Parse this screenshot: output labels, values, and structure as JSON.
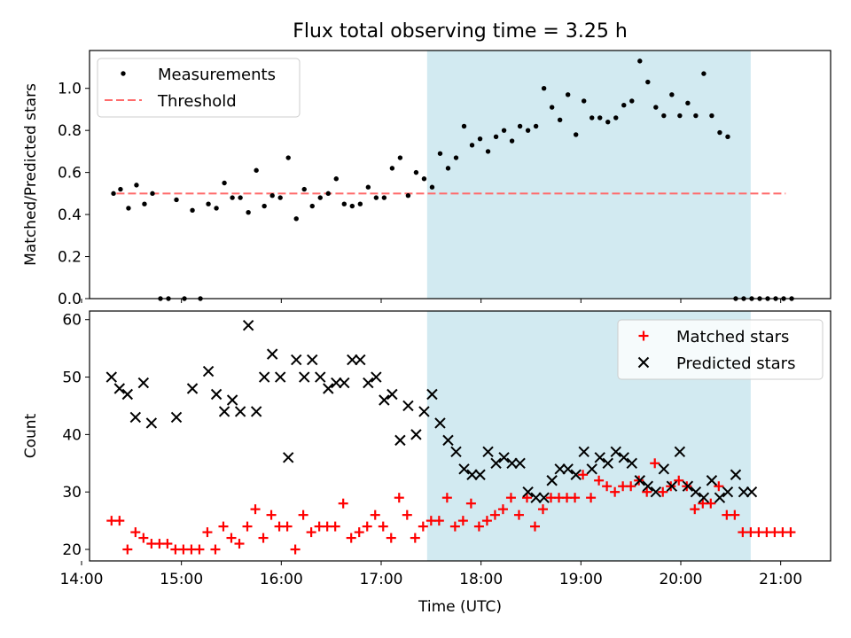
{
  "title": "Flux total observing time = 3.25 h",
  "chart_data": [
    {
      "type": "scatter",
      "ylabel": "Matched/Predicted stars",
      "xlim": [
        14.08,
        21.5
      ],
      "ylim": [
        0,
        1.18
      ],
      "yticks": [
        0.0,
        0.2,
        0.4,
        0.6,
        0.8,
        1.0
      ],
      "ytick_labels": [
        "0.0",
        "0.2",
        "0.4",
        "0.6",
        "0.8",
        "1.0"
      ],
      "shaded_span": {
        "x0": 17.46,
        "x1": 20.7,
        "color": "#add8e6"
      },
      "threshold": {
        "value": 0.5,
        "x0": 14.35,
        "x1": 21.05,
        "color": "#ff6b6b",
        "name": "Threshold"
      },
      "measurements_name": "Measurements",
      "legend_location": "upper left",
      "measurements": {
        "x": [
          14.32,
          14.39,
          14.47,
          14.55,
          14.63,
          14.71,
          14.79,
          14.87,
          14.95,
          15.03,
          15.11,
          15.19,
          15.27,
          15.35,
          15.43,
          15.51,
          15.59,
          15.67,
          15.75,
          15.83,
          15.91,
          15.99,
          16.07,
          16.15,
          16.23,
          16.31,
          16.39,
          16.47,
          16.55,
          16.63,
          16.71,
          16.79,
          16.87,
          16.95,
          17.03,
          17.11,
          17.19,
          17.27,
          17.35,
          17.43,
          17.51,
          17.59,
          17.67,
          17.75,
          17.83,
          17.91,
          17.99,
          18.07,
          18.15,
          18.23,
          18.31,
          18.39,
          18.47,
          18.55,
          18.63,
          18.71,
          18.79,
          18.87,
          18.95,
          19.03,
          19.11,
          19.19,
          19.27,
          19.35,
          19.43,
          19.51,
          19.59,
          19.67,
          19.75,
          19.83,
          19.91,
          19.99,
          20.07,
          20.15,
          20.23,
          20.31,
          20.39,
          20.47,
          20.55,
          20.63,
          20.71,
          20.79,
          20.87,
          20.95,
          21.03,
          21.11
        ],
        "y": [
          0.5,
          0.52,
          0.43,
          0.54,
          0.45,
          0.5,
          0.0,
          0.0,
          0.47,
          0.0,
          0.42,
          0.0,
          0.45,
          0.43,
          0.55,
          0.48,
          0.48,
          0.41,
          0.61,
          0.44,
          0.49,
          0.48,
          0.67,
          0.38,
          0.52,
          0.44,
          0.48,
          0.5,
          0.57,
          0.45,
          0.44,
          0.45,
          0.53,
          0.48,
          0.48,
          0.62,
          0.67,
          0.49,
          0.6,
          0.57,
          0.53,
          0.69,
          0.62,
          0.67,
          0.82,
          0.73,
          0.76,
          0.7,
          0.77,
          0.8,
          0.75,
          0.82,
          0.8,
          0.82,
          1.0,
          0.91,
          0.85,
          0.97,
          0.78,
          0.94,
          0.86,
          0.86,
          0.84,
          0.86,
          0.92,
          0.94,
          1.13,
          1.03,
          0.91,
          0.87,
          0.97,
          0.87,
          0.93,
          0.87,
          1.07,
          0.87,
          0.79,
          0.77,
          0.0,
          0.0,
          0.0,
          0.0,
          0.0,
          0.0,
          0.0,
          0.0
        ]
      }
    },
    {
      "type": "scatter",
      "xlabel": "Time (UTC)",
      "ylabel": "Count",
      "xlim": [
        14.08,
        21.5
      ],
      "ylim": [
        18,
        61.5
      ],
      "xticks": [
        14,
        15,
        16,
        17,
        18,
        19,
        20,
        21
      ],
      "xtick_labels": [
        "14:00",
        "15:00",
        "16:00",
        "17:00",
        "18:00",
        "19:00",
        "20:00",
        "21:00"
      ],
      "yticks": [
        20,
        30,
        40,
        50,
        60
      ],
      "ytick_labels": [
        "20",
        "30",
        "40",
        "50",
        "60"
      ],
      "shaded_span": {
        "x0": 17.46,
        "x1": 20.7,
        "color": "#add8e6"
      },
      "legend_location": "upper right",
      "series": [
        {
          "name": "Matched stars",
          "marker": "+",
          "color": "#ff0000",
          "x": [
            14.3,
            14.38,
            14.46,
            14.54,
            14.62,
            14.7,
            14.78,
            14.86,
            14.94,
            15.02,
            15.1,
            15.18,
            15.26,
            15.34,
            15.42,
            15.5,
            15.58,
            15.66,
            15.74,
            15.82,
            15.9,
            15.98,
            16.06,
            16.14,
            16.22,
            16.3,
            16.38,
            16.46,
            16.54,
            16.62,
            16.7,
            16.78,
            16.86,
            16.94,
            17.02,
            17.1,
            17.18,
            17.26,
            17.34,
            17.42,
            17.5,
            17.58,
            17.66,
            17.74,
            17.82,
            17.9,
            17.98,
            18.06,
            18.14,
            18.22,
            18.3,
            18.38,
            18.46,
            18.54,
            18.62,
            18.7,
            18.78,
            18.86,
            18.94,
            19.02,
            19.1,
            19.18,
            19.26,
            19.34,
            19.42,
            19.5,
            19.58,
            19.66,
            19.74,
            19.82,
            19.9,
            19.98,
            20.06,
            20.14,
            20.22,
            20.3,
            20.38,
            20.46,
            20.54,
            20.62,
            20.7,
            20.78,
            20.86,
            20.94,
            21.02,
            21.1
          ],
          "y": [
            25,
            25,
            20,
            23,
            22,
            21,
            21,
            21,
            20,
            20,
            20,
            20,
            23,
            20,
            24,
            22,
            21,
            24,
            27,
            22,
            26,
            24,
            24,
            20,
            26,
            23,
            24,
            24,
            24,
            28,
            22,
            23,
            24,
            26,
            24,
            22,
            29,
            26,
            22,
            24,
            25,
            25,
            29,
            24,
            25,
            28,
            24,
            25,
            26,
            27,
            29,
            26,
            29,
            24,
            27,
            29,
            29,
            29,
            29,
            33,
            29,
            32,
            31,
            30,
            31,
            31,
            32,
            30,
            35,
            30,
            31,
            32,
            31,
            27,
            28,
            28,
            31,
            26,
            26,
            23,
            23,
            23,
            23,
            23,
            23,
            23
          ]
        },
        {
          "name": "Predicted stars",
          "marker": "x",
          "color": "#000000",
          "x": [
            14.3,
            14.38,
            14.46,
            14.54,
            14.62,
            14.7,
            14.95,
            15.11,
            15.27,
            15.35,
            15.43,
            15.51,
            15.59,
            15.67,
            15.75,
            15.83,
            15.91,
            15.99,
            16.07,
            16.15,
            16.23,
            16.31,
            16.39,
            16.47,
            16.55,
            16.63,
            16.71,
            16.79,
            16.87,
            16.95,
            17.03,
            17.11,
            17.19,
            17.27,
            17.35,
            17.43,
            17.51,
            17.59,
            17.67,
            17.75,
            17.83,
            17.91,
            17.99,
            18.07,
            18.15,
            18.23,
            18.31,
            18.39,
            18.47,
            18.55,
            18.63,
            18.71,
            18.79,
            18.87,
            18.95,
            19.03,
            19.11,
            19.19,
            19.27,
            19.35,
            19.43,
            19.51,
            19.59,
            19.67,
            19.75,
            19.83,
            19.91,
            19.99,
            20.07,
            20.15,
            20.23,
            20.31,
            20.39,
            20.47,
            20.55,
            20.63,
            20.71
          ],
          "y": [
            50,
            48,
            47,
            43,
            49,
            42,
            43,
            48,
            51,
            47,
            44,
            46,
            44,
            59,
            44,
            50,
            54,
            50,
            36,
            53,
            50,
            53,
            50,
            48,
            49,
            49,
            53,
            53,
            49,
            50,
            46,
            47,
            39,
            45,
            40,
            44,
            47,
            42,
            39,
            37,
            34,
            33,
            33,
            37,
            35,
            36,
            35,
            35,
            30,
            29,
            29,
            32,
            34,
            34,
            33,
            37,
            34,
            36,
            35,
            37,
            36,
            35,
            32,
            31,
            30,
            34,
            31,
            37,
            31,
            30,
            29,
            32,
            29,
            30,
            33,
            30,
            30
          ]
        }
      ]
    }
  ]
}
